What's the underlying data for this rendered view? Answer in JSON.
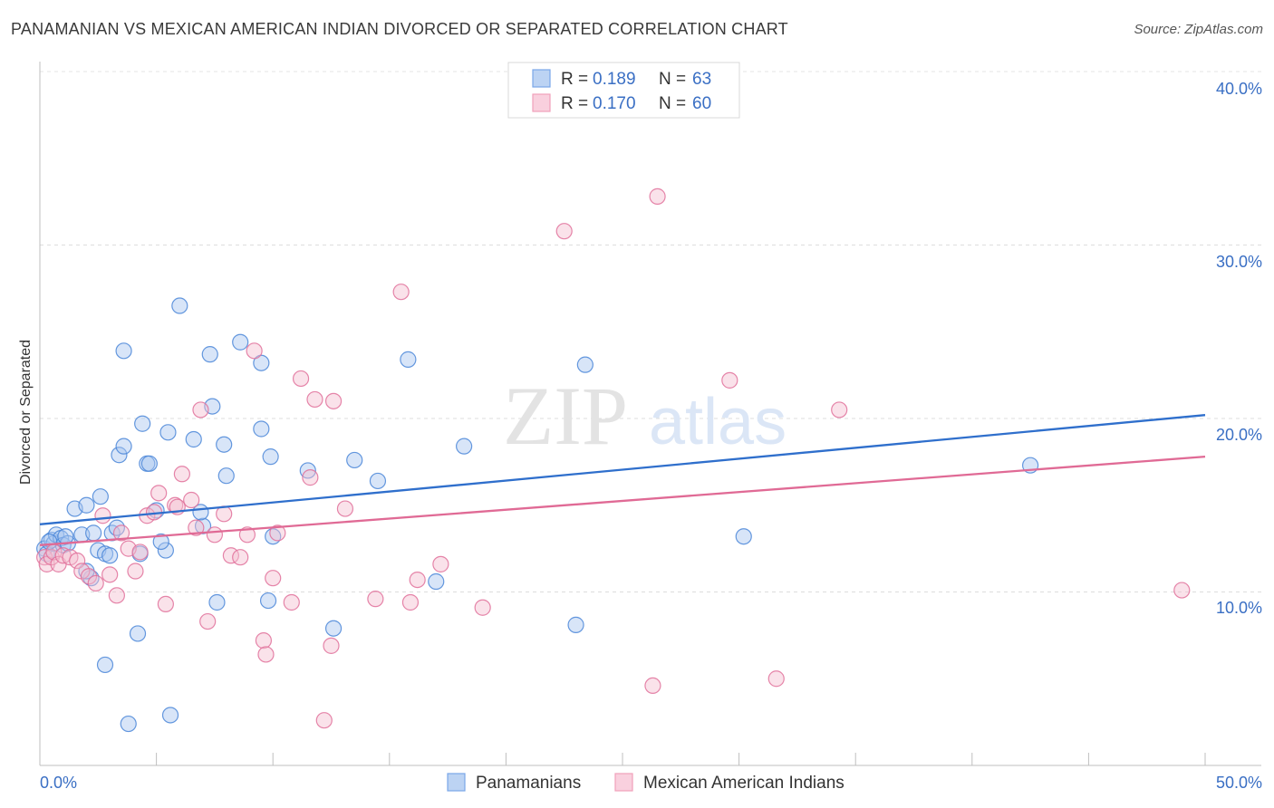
{
  "header": {
    "title": "PANAMANIAN VS MEXICAN AMERICAN INDIAN DIVORCED OR SEPARATED CORRELATION CHART",
    "source": "Source: ZipAtlas.com"
  },
  "watermark": {
    "zip": "ZIP",
    "atlas": "atlas"
  },
  "legend": {
    "rows": [
      {
        "r_label": "R =",
        "r_value": "0.189",
        "n_label": "N =",
        "n_value": "63",
        "color": "#7aa7e8"
      },
      {
        "r_label": "R =",
        "r_value": "0.170",
        "n_label": "N =",
        "n_value": "60",
        "color": "#f0a0bb"
      }
    ]
  },
  "chart_data": {
    "type": "scatter",
    "title": "PANAMANIAN VS MEXICAN AMERICAN INDIAN DIVORCED OR SEPARATED CORRELATION CHART",
    "ylabel": "Divorced or Separated",
    "xlabel": "",
    "xlim": [
      0,
      50
    ],
    "ylim": [
      0,
      40
    ],
    "x_tick_labels": [
      "0.0%",
      "50.0%"
    ],
    "y_tick_labels": [
      "10.0%",
      "20.0%",
      "30.0%",
      "40.0%"
    ],
    "y_ticks": [
      10,
      20,
      30,
      40
    ],
    "grid": true,
    "legend_position": "top-center",
    "series": [
      {
        "name": "Panamanians",
        "color": "#4a86d8",
        "fill": "#a9c6ef",
        "trend": {
          "x": [
            0,
            50
          ],
          "y": [
            13.9,
            20.2
          ]
        },
        "points": [
          [
            0.2,
            12.5
          ],
          [
            0.3,
            12.2
          ],
          [
            0.5,
            13.0
          ],
          [
            0.6,
            12.8
          ],
          [
            0.7,
            13.3
          ],
          [
            0.9,
            13.1
          ],
          [
            1.0,
            12.7
          ],
          [
            1.2,
            12.8
          ],
          [
            1.5,
            14.8
          ],
          [
            1.8,
            13.3
          ],
          [
            2.0,
            15.0
          ],
          [
            2.2,
            10.8
          ],
          [
            2.0,
            11.2
          ],
          [
            2.3,
            13.4
          ],
          [
            2.5,
            12.4
          ],
          [
            2.6,
            15.5
          ],
          [
            2.8,
            12.2
          ],
          [
            3.0,
            12.1
          ],
          [
            3.1,
            13.4
          ],
          [
            3.3,
            13.7
          ],
          [
            3.4,
            17.9
          ],
          [
            3.6,
            18.4
          ],
          [
            3.6,
            23.9
          ],
          [
            4.3,
            12.2
          ],
          [
            4.4,
            19.7
          ],
          [
            4.6,
            17.4
          ],
          [
            4.7,
            17.4
          ],
          [
            4.2,
            7.6
          ],
          [
            3.8,
            2.4
          ],
          [
            2.8,
            5.8
          ],
          [
            5.4,
            12.4
          ],
          [
            5.0,
            14.7
          ],
          [
            5.2,
            12.9
          ],
          [
            5.5,
            19.2
          ],
          [
            6.0,
            26.5
          ],
          [
            6.6,
            18.8
          ],
          [
            7.0,
            13.8
          ],
          [
            7.3,
            23.7
          ],
          [
            7.4,
            20.7
          ],
          [
            7.6,
            9.4
          ],
          [
            7.9,
            18.5
          ],
          [
            8.0,
            16.7
          ],
          [
            8.6,
            24.4
          ],
          [
            9.5,
            23.2
          ],
          [
            9.5,
            19.4
          ],
          [
            9.9,
            17.8
          ],
          [
            9.8,
            9.5
          ],
          [
            10.0,
            13.2
          ],
          [
            11.5,
            17.0
          ],
          [
            12.6,
            7.9
          ],
          [
            13.5,
            17.6
          ],
          [
            14.5,
            16.4
          ],
          [
            15.8,
            23.4
          ],
          [
            17.0,
            10.6
          ],
          [
            18.2,
            18.4
          ],
          [
            23.4,
            23.1
          ],
          [
            23.0,
            8.1
          ],
          [
            30.2,
            13.2
          ],
          [
            42.5,
            17.3
          ],
          [
            5.6,
            2.9
          ],
          [
            6.9,
            14.6
          ],
          [
            0.4,
            12.9
          ],
          [
            1.1,
            13.2
          ]
        ]
      },
      {
        "name": "Mexican American Indians",
        "color": "#e0709a",
        "fill": "#f5bfd1",
        "trend": {
          "x": [
            0,
            50
          ],
          "y": [
            12.7,
            17.8
          ]
        },
        "points": [
          [
            0.2,
            12.0
          ],
          [
            0.3,
            11.6
          ],
          [
            0.5,
            12.0
          ],
          [
            0.6,
            12.3
          ],
          [
            0.8,
            11.6
          ],
          [
            1.0,
            12.1
          ],
          [
            1.3,
            12.0
          ],
          [
            1.6,
            11.8
          ],
          [
            1.8,
            11.2
          ],
          [
            2.1,
            10.9
          ],
          [
            2.4,
            10.5
          ],
          [
            2.7,
            14.4
          ],
          [
            3.0,
            11.0
          ],
          [
            3.3,
            9.8
          ],
          [
            3.5,
            13.4
          ],
          [
            3.8,
            12.5
          ],
          [
            4.1,
            11.2
          ],
          [
            4.3,
            12.3
          ],
          [
            4.6,
            14.4
          ],
          [
            4.9,
            14.6
          ],
          [
            5.1,
            15.7
          ],
          [
            5.4,
            9.3
          ],
          [
            5.8,
            15.0
          ],
          [
            6.1,
            16.8
          ],
          [
            6.5,
            15.3
          ],
          [
            6.7,
            13.7
          ],
          [
            6.9,
            20.5
          ],
          [
            7.2,
            8.3
          ],
          [
            7.5,
            13.3
          ],
          [
            7.9,
            14.5
          ],
          [
            8.2,
            12.1
          ],
          [
            8.6,
            12.0
          ],
          [
            8.9,
            13.3
          ],
          [
            9.2,
            23.9
          ],
          [
            9.6,
            7.2
          ],
          [
            9.7,
            6.4
          ],
          [
            10.0,
            10.8
          ],
          [
            10.2,
            13.4
          ],
          [
            10.8,
            9.4
          ],
          [
            11.2,
            22.3
          ],
          [
            11.6,
            16.6
          ],
          [
            11.8,
            21.1
          ],
          [
            12.5,
            6.9
          ],
          [
            12.6,
            21.0
          ],
          [
            12.2,
            2.6
          ],
          [
            13.1,
            14.8
          ],
          [
            14.4,
            9.6
          ],
          [
            15.5,
            27.3
          ],
          [
            15.9,
            9.4
          ],
          [
            16.2,
            10.7
          ],
          [
            17.2,
            11.6
          ],
          [
            19.0,
            9.1
          ],
          [
            22.5,
            30.8
          ],
          [
            26.5,
            32.8
          ],
          [
            26.3,
            4.6
          ],
          [
            29.6,
            22.2
          ],
          [
            31.6,
            5.0
          ],
          [
            34.3,
            20.5
          ],
          [
            49.0,
            10.1
          ],
          [
            5.9,
            14.9
          ]
        ]
      }
    ]
  },
  "bottom_legend": {
    "items": [
      {
        "label": "Panamanians",
        "color": "#7aa7e8"
      },
      {
        "label": "Mexican American Indians",
        "color": "#f0a0bb"
      }
    ]
  }
}
